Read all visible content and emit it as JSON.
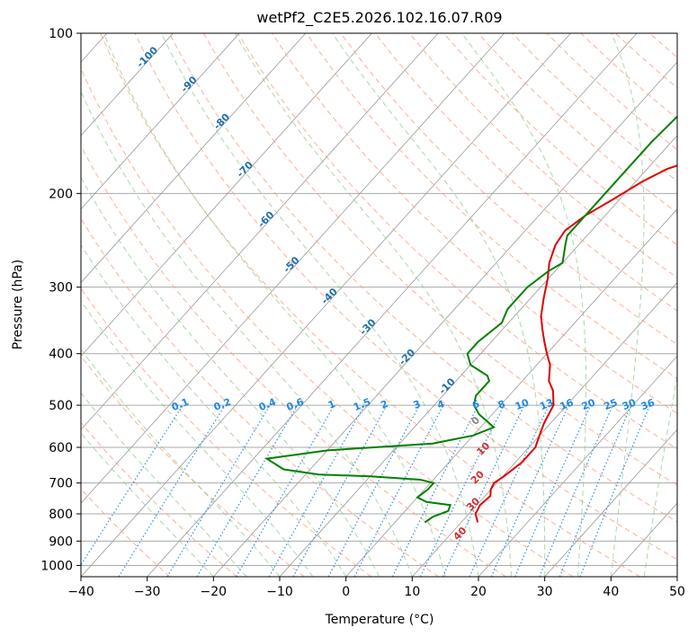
{
  "chart_data": {
    "type": "line",
    "subtype": "skew-t log-p",
    "title": "wetPf2_C2E5.2026.102.16.07.R09",
    "xlabel": "Temperature (°C)",
    "ylabel": "Pressure (hPa)",
    "xlim": [
      -40,
      50
    ],
    "ylim": [
      1050,
      100
    ],
    "y_scale": "log",
    "grid": true,
    "x_ticks": [
      "−40",
      "−30",
      "−20",
      "−10",
      "0",
      "10",
      "20",
      "30",
      "40",
      "50"
    ],
    "y_ticks": [
      "100",
      "200",
      "300",
      "400",
      "500",
      "600",
      "700",
      "800",
      "900",
      "1000"
    ],
    "series": [
      {
        "color": "#e00000",
        "points": [
          [
            12.5,
            830
          ],
          [
            11,
            800
          ],
          [
            10.5,
            770
          ],
          [
            10.8,
            740
          ],
          [
            10,
            720
          ],
          [
            9.6,
            700
          ],
          [
            10.2,
            680
          ],
          [
            11,
            640
          ],
          [
            11,
            600
          ],
          [
            10,
            570
          ],
          [
            9,
            540
          ],
          [
            8,
            500
          ],
          [
            6,
            470
          ],
          [
            4,
            450
          ],
          [
            2,
            420
          ],
          [
            0,
            400
          ],
          [
            -2,
            380
          ],
          [
            -4,
            360
          ],
          [
            -6,
            340
          ],
          [
            -8,
            315
          ],
          [
            -10,
            290
          ],
          [
            -12,
            270
          ],
          [
            -13.5,
            250
          ],
          [
            -14,
            235
          ],
          [
            -13,
            220
          ],
          [
            -11,
            205
          ],
          [
            -9,
            190
          ],
          [
            -7,
            180
          ],
          [
            -5,
            175
          ],
          [
            -2,
            170
          ],
          [
            2,
            165
          ],
          [
            6,
            160
          ],
          [
            12,
            150
          ],
          [
            16,
            140
          ],
          [
            19,
            130
          ],
          [
            21,
            120
          ],
          [
            22,
            110
          ],
          [
            22,
            100
          ]
        ]
      },
      {
        "color": "#008000",
        "points": [
          [
            4.5,
            830
          ],
          [
            5,
            810
          ],
          [
            6.5,
            790
          ],
          [
            6,
            770
          ],
          [
            2,
            760
          ],
          [
            0,
            745
          ],
          [
            0.5,
            720
          ],
          [
            0.5,
            700
          ],
          [
            -2,
            690
          ],
          [
            -10,
            680
          ],
          [
            -18,
            675
          ],
          [
            -24,
            660
          ],
          [
            -28,
            630
          ],
          [
            -20,
            608
          ],
          [
            -5,
            590
          ],
          [
            0,
            570
          ],
          [
            2,
            550
          ],
          [
            -2,
            520
          ],
          [
            -4,
            500
          ],
          [
            -5,
            480
          ],
          [
            -5,
            450
          ],
          [
            -6,
            440
          ],
          [
            -10,
            420
          ],
          [
            -12,
            400
          ],
          [
            -12,
            380
          ],
          [
            -11,
            350
          ],
          [
            -12,
            330
          ],
          [
            -12,
            300
          ],
          [
            -11,
            280
          ],
          [
            -10,
            270
          ],
          [
            -12,
            250
          ],
          [
            -13,
            240
          ],
          [
            -13,
            220
          ],
          [
            -13,
            200
          ],
          [
            -13,
            180
          ],
          [
            -13,
            160
          ],
          [
            -12.5,
            140
          ],
          [
            -11,
            130
          ],
          [
            -9,
            120
          ],
          [
            -7,
            110
          ],
          [
            -4,
            100
          ]
        ]
      }
    ],
    "line_families": {
      "dry_adiabat_labels": [
        "-100",
        "-90",
        "-80",
        "-70",
        "-60",
        "-50",
        "-40",
        "-30",
        "-20",
        "-10"
      ],
      "mixing_ratio_labels": [
        "0.1",
        "0.2",
        "0.4",
        "0.6",
        "1",
        "1.5",
        "2",
        "3",
        "4",
        "6",
        "8",
        "10",
        "13",
        "16",
        "20",
        "25",
        "30",
        "36"
      ],
      "moist_adiabat_labels": [
        "0",
        "10",
        "20",
        "30",
        "40"
      ],
      "colors": {
        "isotherm": "#999999",
        "isobar": "#aaaaaa",
        "dry_adiabat": "#f5a080",
        "moist_adiabat": "#88c888",
        "mixing_ratio": "#2f8fdc",
        "mixing_label": "#1e88e5",
        "dry_label": "#1f6fae",
        "moist_label": "#d32f2f",
        "zero_label": "#888888"
      }
    }
  }
}
